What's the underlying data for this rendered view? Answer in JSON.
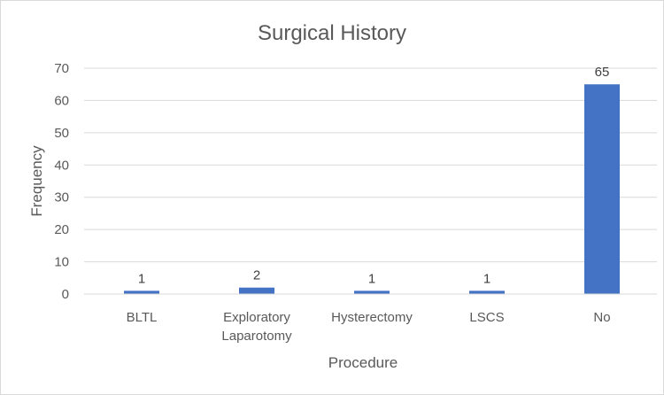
{
  "chart_data": {
    "type": "bar",
    "title": "Surgical History",
    "xlabel": "Procedure",
    "ylabel": "Frequency",
    "categories": [
      [
        "BLTL"
      ],
      [
        "Exploratory",
        "Laparotomy"
      ],
      [
        "Hysterectomy"
      ],
      [
        "LSCS"
      ],
      [
        "No"
      ]
    ],
    "values": [
      1,
      2,
      1,
      1,
      65
    ],
    "data_labels": [
      "1",
      "2",
      "1",
      "1",
      "65"
    ],
    "ylim": [
      0,
      70
    ],
    "yticks": [
      0,
      10,
      20,
      30,
      40,
      50,
      60,
      70
    ],
    "grid": true,
    "legend": false,
    "bar_color": "#4472C4"
  }
}
